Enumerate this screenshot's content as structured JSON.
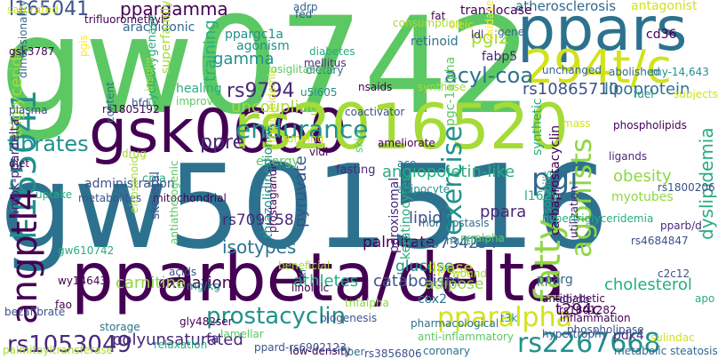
{
  "palette": {
    "c1": "#5cc863",
    "c2": "#2c728e",
    "c3": "#440154",
    "c4": "#a5db36",
    "c5": "#21918c",
    "c6": "#3b528b",
    "c7": "#8fd744",
    "c8": "#d2e21b",
    "c9": "#31688e",
    "c10": "#482878",
    "c11": "#27ad81",
    "c12": "#fde725"
  },
  "words": [
    "gw0742",
    "gw501516",
    "pparbeta/delta",
    "ppars",
    "gsk0660",
    "rs2016520",
    "294t/c",
    "l-165041",
    "exercise",
    "endurance",
    "fatty",
    "agonists",
    "pgi",
    "angptl4",
    "prostacyclin",
    "pparalpha",
    "rs2267668",
    "rs1053049",
    "fibrates",
    "l165041",
    "ppargamma",
    "pgi2",
    "acyl-coa",
    "rs9794",
    "rs10865710",
    "lipoprotein",
    "atherosclerosis",
    "uncoupling",
    "training",
    "gamma",
    "ppre",
    "arachidonic",
    "triglyceride",
    "gsk3787",
    "rs1805192",
    "plasma",
    "diet",
    "gw610742",
    "oxidation",
    "carnitine",
    "athletes",
    "catabolism",
    "isotypes",
    "rs709158",
    "mitochondrial",
    "lipid",
    "ppara",
    "palmitate",
    "rs3734254",
    "glucose",
    "adipose",
    "lipase",
    "cholesterol",
    "t294c",
    "dyslipidemia",
    "rs4684847",
    "obesity",
    "myotubes",
    "angiopoietin-like",
    "fasting",
    "prostaglandin",
    "pyruvate",
    "polyunsaturated",
    "storage",
    "gly482ser",
    "fa",
    "pdk4",
    "low-density",
    "coronary",
    "rs3856806",
    "metabolic steatosis",
    "adrp",
    "fat",
    "cd36",
    "fabp5",
    "retinoid",
    "agonism",
    "mellitus",
    "diabetes",
    "ppargc1a",
    "fed",
    "translocase",
    "antagonist",
    "ampk-ppardelta",
    "bezafibrate",
    "wy14643",
    "fao",
    "carbaprostacyclin",
    "l162v",
    "peroxisomal",
    "keratinocytes",
    "sulindac",
    "pparg",
    "cox2",
    "multifactor",
    "synthetic",
    "rxralpha",
    "wound",
    "linoleic",
    "rxr",
    "pgc-1alpha",
    "ldl",
    "improves",
    "healing",
    "nsaids",
    "superfamily",
    "cyclooxygenase",
    "insulin",
    "hfd",
    "content",
    "cpla",
    "administration",
    "metabolites",
    "uptake",
    "energy",
    "skin",
    "running",
    "vldl",
    "aco",
    "skeletal",
    "thiazolidinediones",
    "antiatherogenic",
    "ppard-rs6902123",
    "ligands",
    "solubilis",
    "phospholipids",
    "phospholipase",
    "dietary",
    "u5l605",
    "rosiglitazone",
    "dimensionality",
    "trifluoromethyl",
    "consumption",
    "oleic",
    "oxidase",
    "coactivator",
    "hypolipidemic",
    "ameliorate",
    "adipocyte",
    "homeostasis",
    "utilization",
    "gene",
    "unchanged",
    "abolished",
    "my-14,643",
    "subjects",
    "synthase",
    "mass",
    "beneficial",
    "palmitoyltransferase",
    "lamellar",
    "relaxation",
    "biogenesis",
    "pharmacological",
    "anti-inflammatory",
    "hypertrophy",
    "inflammation",
    "fiber",
    "acids",
    "mg/kg",
    "tnfalpha",
    "drug",
    "eicosanoid",
    "c2c12",
    "antidiabetic",
    "rs1801282",
    "rs1800206",
    "db/db",
    "t3k",
    "pgis",
    "fuel",
    "hypertriglyceridemia",
    "pparb/d",
    "saturated",
    "apo",
    "clinical"
  ]
}
